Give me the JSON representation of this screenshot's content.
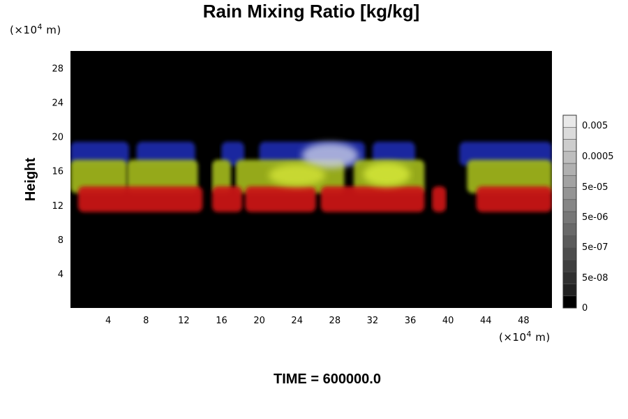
{
  "chart_data": {
    "type": "heatmap",
    "title": "Rain Mixing Ratio [kg/kg]",
    "ylabel": "Height",
    "x_unit": {
      "pre": "(×10",
      "sup": "4",
      "post": " m)"
    },
    "y_unit": {
      "pre": "(×10",
      "sup": "4",
      "post": " m)"
    },
    "xlim": [
      0,
      51
    ],
    "ylim": [
      0,
      30
    ],
    "xticks": [
      4,
      8,
      12,
      16,
      20,
      24,
      28,
      32,
      36,
      40,
      44,
      48
    ],
    "yticks": [
      4,
      8,
      12,
      16,
      20,
      24,
      28
    ],
    "colorbar": {
      "ticks": [
        "0.005",
        "0.0005",
        "5e-05",
        "5e-06",
        "5e-07",
        "5e-08",
        "0"
      ]
    },
    "layers": [
      {
        "name": "blue",
        "color": "#1e2aa8",
        "spans": [
          [
            0,
            6.2
          ],
          [
            7,
            13.2
          ],
          [
            16,
            18.4
          ],
          [
            20,
            31.2
          ],
          [
            32,
            36.5
          ],
          [
            41.2,
            51
          ]
        ],
        "bottom": 16.6,
        "top": 19.4
      },
      {
        "name": "yellow",
        "color": "#9db31e",
        "spans": [
          [
            0,
            6
          ],
          [
            6,
            13.5
          ],
          [
            15,
            17
          ],
          [
            17.5,
            29
          ],
          [
            30,
            37.5
          ],
          [
            42,
            51
          ]
        ],
        "bottom": 13.4,
        "top": 17.3
      },
      {
        "name": "red",
        "color": "#c91212",
        "spans": [
          [
            0.8,
            14
          ],
          [
            15,
            18.2
          ],
          [
            18.5,
            26
          ],
          [
            26.5,
            37.5
          ],
          [
            38.3,
            39.8
          ],
          [
            43,
            51
          ]
        ],
        "bottom": 11.2,
        "top": 14.2
      }
    ],
    "highlights": [
      {
        "color": "#c8cde8",
        "x": [
          24.5,
          30.5
        ],
        "y": [
          16.3,
          19.3
        ]
      },
      {
        "color": "#d9ec3a",
        "x": [
          31,
          36
        ],
        "y": [
          14.2,
          17.0
        ]
      },
      {
        "color": "#d4e437",
        "x": [
          21,
          27
        ],
        "y": [
          14.2,
          16.8
        ]
      }
    ]
  },
  "footer": {
    "time_label": "TIME = 600000.0"
  }
}
